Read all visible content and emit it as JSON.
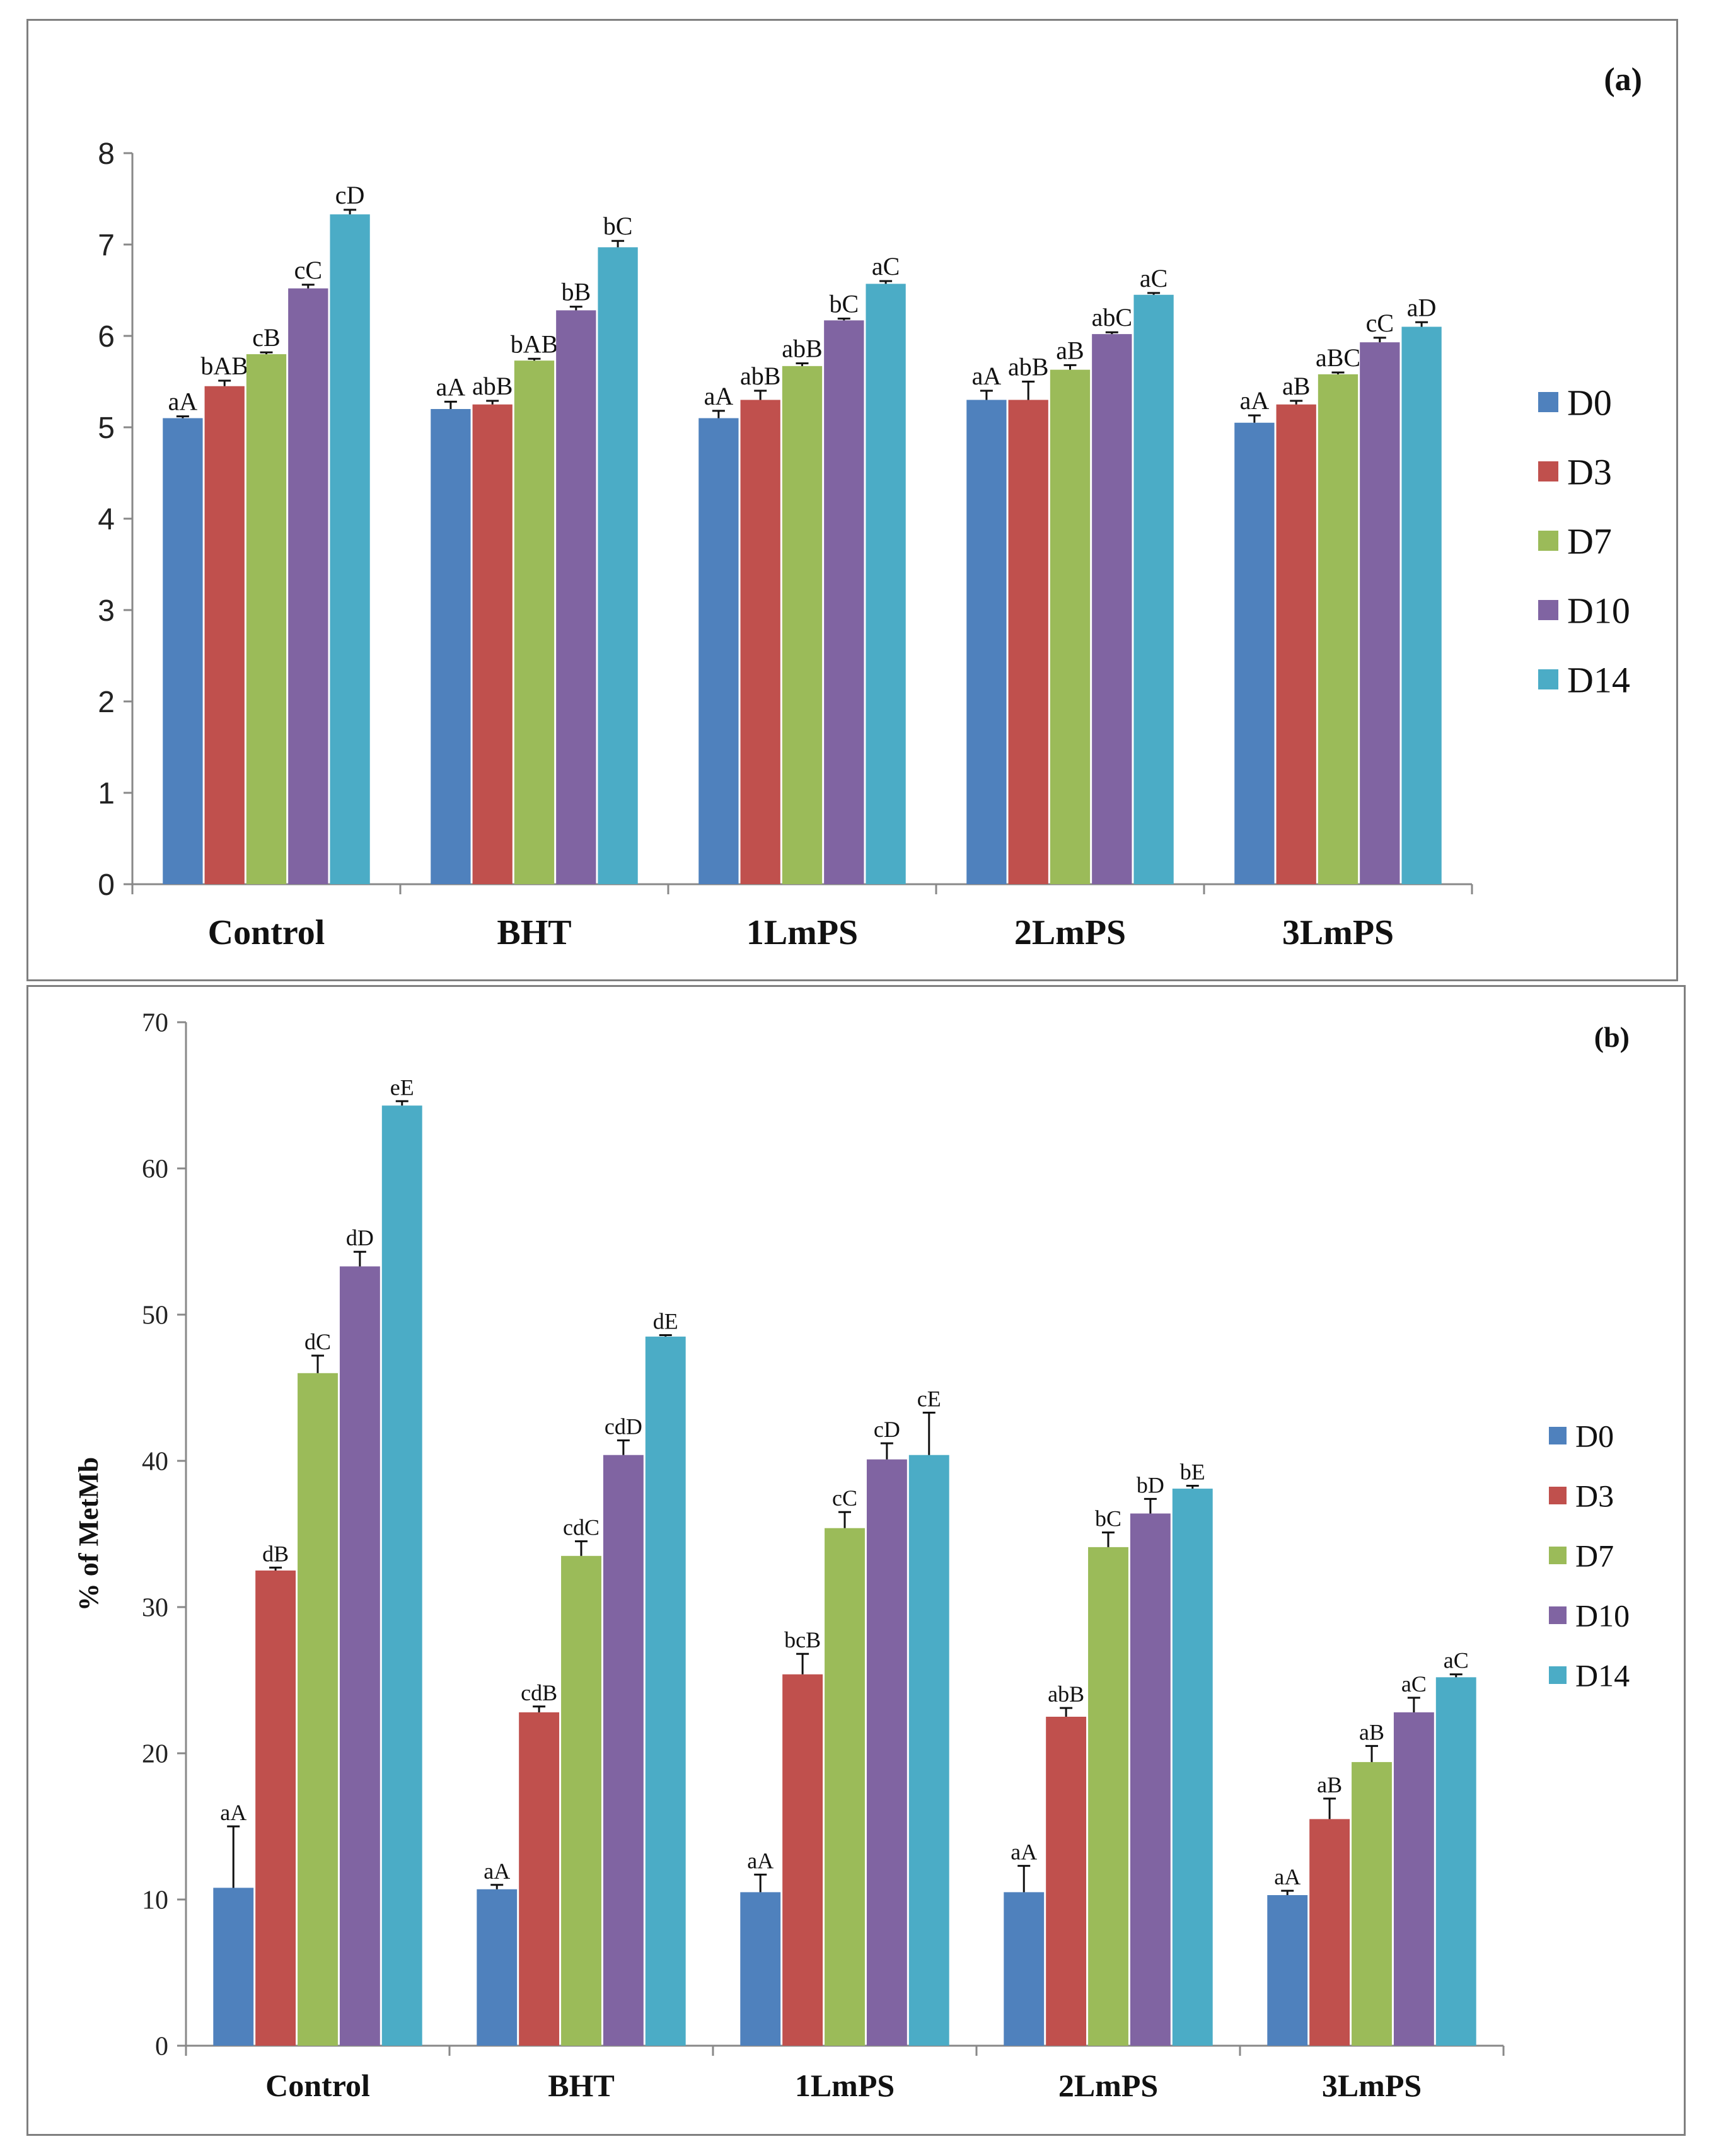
{
  "colors": {
    "D0": "#4f81bd",
    "D3": "#c0504d",
    "D7": "#9bbb59",
    "D10": "#8064a2",
    "D14": "#4bacc6"
  },
  "chart_data": [
    {
      "type": "bar",
      "panel_label": "(a)",
      "title": "",
      "xlabel": "",
      "ylabel": "",
      "categories": [
        "Control",
        "BHT",
        "1LmPS",
        "2LmPS",
        "3LmPS"
      ],
      "ylim": [
        0,
        8
      ],
      "yticks": [
        "0",
        "1",
        "2",
        "3",
        "4",
        "5",
        "6",
        "7",
        "8"
      ],
      "grid": false,
      "legend_position": "right",
      "series": [
        {
          "name": "D0",
          "values": [
            5.1,
            5.2,
            5.1,
            5.3,
            5.05
          ],
          "errors": [
            0.02,
            0.08,
            0.08,
            0.1,
            0.08
          ],
          "labels": [
            "aA",
            "aA",
            "aA",
            "aA",
            "aA"
          ]
        },
        {
          "name": "D3",
          "values": [
            5.45,
            5.25,
            5.3,
            5.3,
            5.25
          ],
          "errors": [
            0.06,
            0.04,
            0.1,
            0.2,
            0.04
          ],
          "labels": [
            "bAB",
            "abB",
            "abB",
            "abB",
            "aB"
          ]
        },
        {
          "name": "D7",
          "values": [
            5.8,
            5.73,
            5.67,
            5.63,
            5.58
          ],
          "errors": [
            0.02,
            0.02,
            0.03,
            0.05,
            0.02
          ],
          "labels": [
            "cB",
            "bAB",
            "abB",
            "aB",
            "aBC"
          ]
        },
        {
          "name": "D10",
          "values": [
            6.52,
            6.28,
            6.17,
            6.02,
            5.93
          ],
          "errors": [
            0.04,
            0.04,
            0.02,
            0.02,
            0.05
          ],
          "labels": [
            "cC",
            "bB",
            "bC",
            "abC",
            "cC"
          ]
        },
        {
          "name": "D14",
          "values": [
            7.33,
            6.97,
            6.57,
            6.45,
            6.1
          ],
          "errors": [
            0.05,
            0.07,
            0.03,
            0.02,
            0.05
          ],
          "labels": [
            "cD",
            "bC",
            "aC",
            "aC",
            "aD"
          ]
        }
      ]
    },
    {
      "type": "bar",
      "panel_label": "(b)",
      "title": "",
      "xlabel": "",
      "ylabel": "% of MetMb",
      "categories": [
        "Control",
        "BHT",
        "1LmPS",
        "2LmPS",
        "3LmPS"
      ],
      "ylim": [
        0,
        70
      ],
      "yticks": [
        "0",
        "10",
        "20",
        "30",
        "40",
        "50",
        "60",
        "70"
      ],
      "grid": false,
      "legend_position": "right",
      "series": [
        {
          "name": "D0",
          "values": [
            10.8,
            10.7,
            10.5,
            10.5,
            10.3
          ],
          "errors": [
            4.2,
            0.3,
            1.2,
            1.8,
            0.3
          ],
          "labels": [
            "aA",
            "aA",
            "aA",
            "aA",
            "aA"
          ]
        },
        {
          "name": "D3",
          "values": [
            32.5,
            22.8,
            25.4,
            22.5,
            15.5
          ],
          "errors": [
            0.2,
            0.4,
            1.4,
            0.6,
            1.4
          ],
          "labels": [
            "dB",
            "cdB",
            "bcB",
            "abB",
            "aB"
          ]
        },
        {
          "name": "D7",
          "values": [
            46.0,
            33.5,
            35.4,
            34.1,
            19.4
          ],
          "errors": [
            1.2,
            1.0,
            1.1,
            1.0,
            1.1
          ],
          "labels": [
            "dC",
            "cdC",
            "cC",
            "bC",
            "aB"
          ]
        },
        {
          "name": "D10",
          "values": [
            53.3,
            40.4,
            40.1,
            36.4,
            22.8
          ],
          "errors": [
            1.0,
            1.0,
            1.1,
            1.0,
            1.0
          ],
          "labels": [
            "dD",
            "cdD",
            "cD",
            "bD",
            "aC"
          ]
        },
        {
          "name": "D14",
          "values": [
            64.3,
            48.5,
            40.4,
            38.1,
            25.2
          ],
          "errors": [
            0.3,
            0.1,
            2.9,
            0.2,
            0.2
          ],
          "labels": [
            "eE",
            "dE",
            "cE",
            "bE",
            "aC"
          ]
        }
      ]
    }
  ]
}
